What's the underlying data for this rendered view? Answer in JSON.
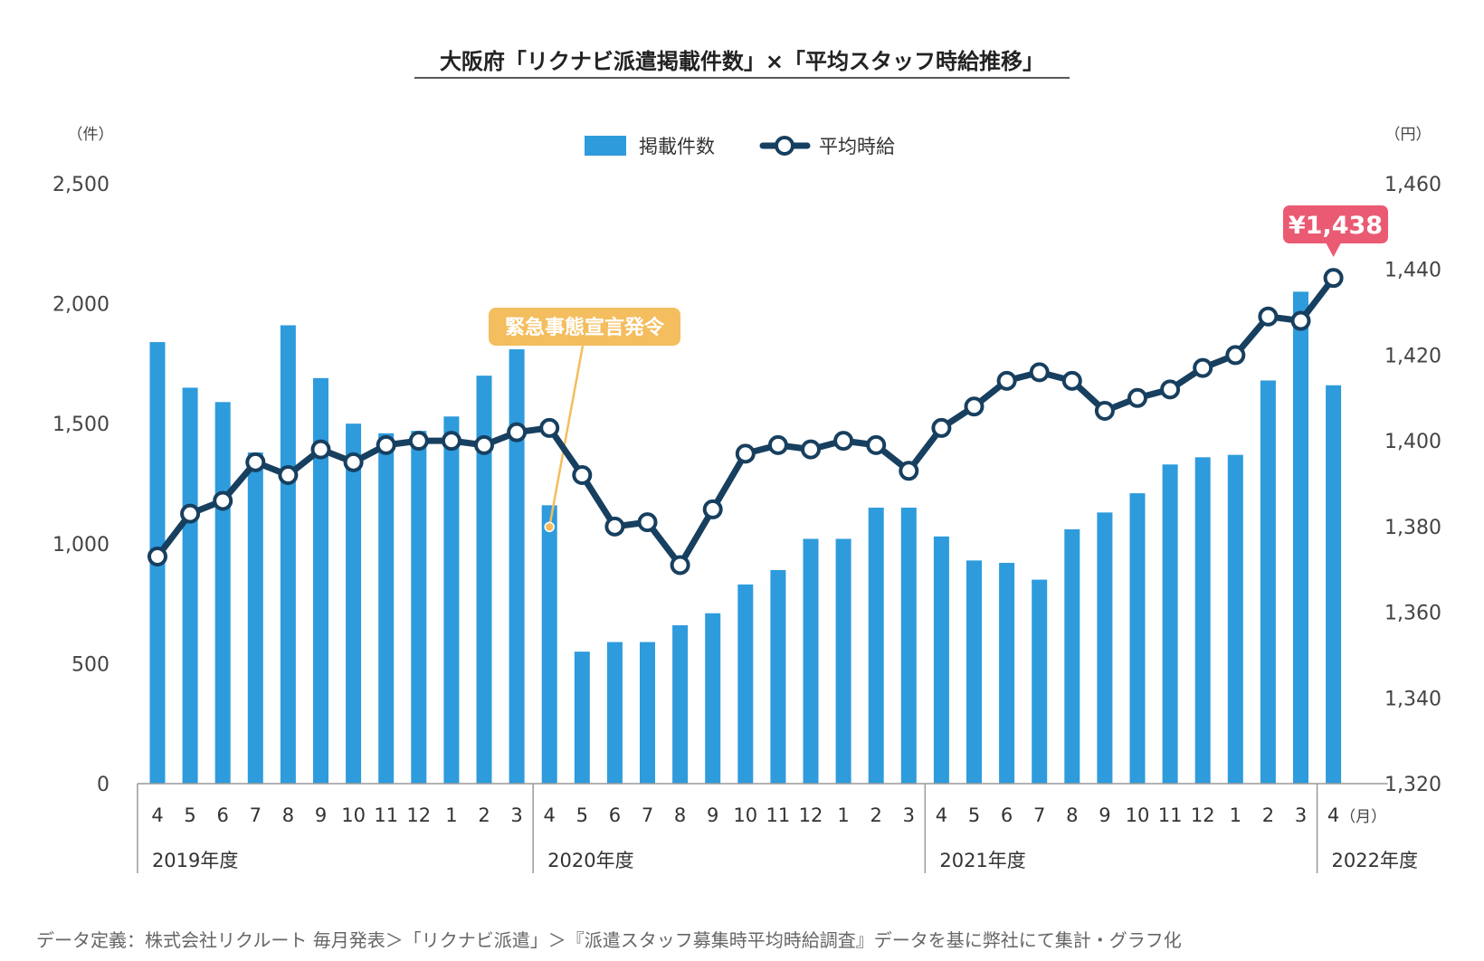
{
  "title": "大阪府「リクナビ派遣掲載件数」×「平均スタッフ時給推移」",
  "units": {
    "left": "（件）",
    "right": "（円）",
    "month": "（月）"
  },
  "legend": {
    "bars": "掲載件数",
    "line": "平均時給"
  },
  "annotations": {
    "event": "緊急事態宣言発令",
    "latest_price": "¥1,438"
  },
  "footnote": "データ定義：株式会社リクルート 毎月発表＞「リクナビ派遣」＞『派遣スタッフ募集時平均時給調査』データを基に弊社にて集計・グラフ化",
  "colors": {
    "bar": "#2e9bdc",
    "line": "#173f5f",
    "callout_event": "#f4bd5e",
    "callout_price": "#ea5b73"
  },
  "chart_data": {
    "type": "bar",
    "title": "大阪府「リクナビ派遣掲載件数」×「平均スタッフ時給推移」",
    "categories": [
      "4",
      "5",
      "6",
      "7",
      "8",
      "9",
      "10",
      "11",
      "12",
      "1",
      "2",
      "3",
      "4",
      "5",
      "6",
      "7",
      "8",
      "9",
      "10",
      "11",
      "12",
      "1",
      "2",
      "3",
      "4",
      "5",
      "6",
      "7",
      "8",
      "9",
      "10",
      "11",
      "12",
      "1",
      "2",
      "3",
      "4"
    ],
    "year_groups": [
      {
        "label": "2019年度",
        "count": 12
      },
      {
        "label": "2020年度",
        "count": 12
      },
      {
        "label": "2021年度",
        "count": 12
      },
      {
        "label": "2022年度",
        "count": 1
      }
    ],
    "series": [
      {
        "name": "掲載件数",
        "type": "bar",
        "axis": "left",
        "values": [
          1840,
          1650,
          1590,
          1380,
          1910,
          1690,
          1500,
          1460,
          1470,
          1530,
          1700,
          1810,
          1160,
          550,
          590,
          590,
          660,
          710,
          830,
          890,
          1020,
          1020,
          1150,
          1150,
          1030,
          930,
          920,
          850,
          1060,
          1130,
          1210,
          1330,
          1360,
          1370,
          1680,
          2050,
          1660
        ]
      },
      {
        "name": "平均時給",
        "type": "line",
        "axis": "right",
        "values": [
          1373,
          1383,
          1386,
          1395,
          1392,
          1398,
          1395,
          1399,
          1400,
          1400,
          1399,
          1402,
          1403,
          1392,
          1380,
          1381,
          1371,
          1384,
          1397,
          1399,
          1398,
          1400,
          1399,
          1393,
          1403,
          1408,
          1414,
          1416,
          1414,
          1407,
          1410,
          1412,
          1417,
          1420,
          1429,
          1428,
          1438
        ]
      }
    ],
    "y_left": {
      "min": 0,
      "max": 2500,
      "ticks": [
        0,
        500,
        1000,
        1500,
        2000,
        2500
      ],
      "tick_labels": [
        "0",
        "500",
        "1,000",
        "1,500",
        "2,000",
        "2,500"
      ]
    },
    "y_right": {
      "min": 1320,
      "max": 1460,
      "ticks": [
        1320,
        1340,
        1360,
        1380,
        1400,
        1420,
        1440,
        1460
      ],
      "tick_labels": [
        "1,320",
        "1,340",
        "1,360",
        "1,380",
        "1,400",
        "1,420",
        "1,440",
        "1,460"
      ]
    },
    "event_index": 12,
    "grid": false,
    "legend_position": "top-center"
  }
}
